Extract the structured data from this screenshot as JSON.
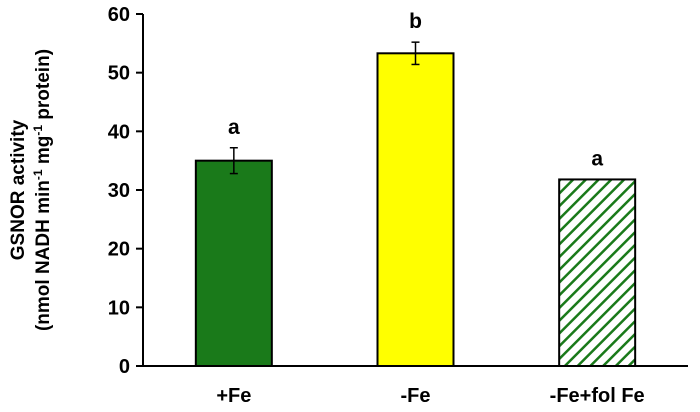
{
  "chart_data": {
    "type": "bar",
    "ylabel_line1": "GSNOR  activity",
    "ylabel_line2_parts": [
      "(nmol NADH min",
      "-1",
      " mg",
      "-1",
      " protein)"
    ],
    "ylim": [
      0,
      60
    ],
    "yticks": [
      0,
      10,
      20,
      30,
      40,
      50,
      60
    ],
    "grid": false,
    "legend": "none",
    "categories": [
      "+Fe",
      "-Fe",
      "-Fe+fol Fe"
    ],
    "values": [
      35.0,
      53.3,
      31.8
    ],
    "errors": [
      2.2,
      1.9,
      0
    ],
    "significance": [
      "a",
      "b",
      "a"
    ],
    "styles": [
      {
        "fill": "#1a7a1a",
        "pattern": "solid"
      },
      {
        "fill": "#ffff00",
        "pattern": "solid"
      },
      {
        "fill": "#1a7a1a",
        "pattern": "diagonal-hatch"
      }
    ]
  }
}
